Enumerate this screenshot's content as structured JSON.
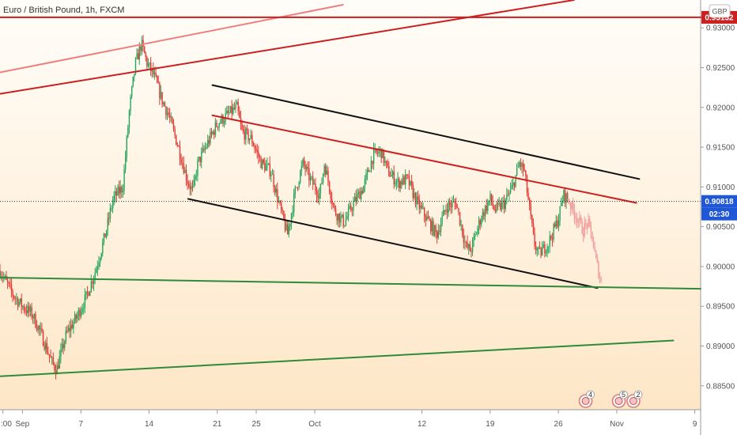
{
  "header": {
    "title": "Euro / British Pound, 1h, FXCM"
  },
  "axis": {
    "currency": "GBP"
  },
  "chart_data": {
    "type": "candlestick",
    "title": "Euro / British Pound, 1h, FXCM",
    "ylim": [
      0.882,
      0.9335
    ],
    "y_ticks": [
      "0.93000",
      "0.92500",
      "0.92000",
      "0.91500",
      "0.91000",
      "0.90500",
      "0.90000",
      "0.89500",
      "0.89000",
      "0.88500"
    ],
    "y_tick_values": [
      0.93,
      0.925,
      0.92,
      0.915,
      0.91,
      0.905,
      0.9,
      0.895,
      0.89,
      0.885
    ],
    "x_ticks": [
      ":00",
      "Sep",
      "7",
      "14",
      "21",
      "25",
      "Oct",
      "12",
      "19",
      "26",
      "Nov",
      "9"
    ],
    "x_tick_days": [
      -2,
      0,
      6,
      13,
      20,
      24,
      30,
      41,
      48,
      55,
      61,
      69
    ],
    "x_range_days": [
      -2.3,
      69.6
    ],
    "price_labels": {
      "resistance": {
        "text": "0.93132",
        "value": 0.93132,
        "color": "#cc1f1f"
      },
      "last": {
        "text": "0.90818",
        "value": 0.90818,
        "color": "#1f57d6"
      },
      "countdown": {
        "text": "02:30",
        "color": "#1f57d6"
      }
    },
    "colors": {
      "up": "#26a65b",
      "down": "#e53935",
      "recent": "#f29b9b",
      "black_channel": "#111111",
      "red_trend": "#cc1f1f",
      "pink_trend": "#ef7f7f",
      "green_support": "#2f8a3a"
    },
    "trend_lines": [
      {
        "name": "pink-upper-trendline",
        "color": "#ef7f7f",
        "width": 2,
        "p1": [
          -2.3,
          0.9244
        ],
        "p2": [
          32.9,
          0.9329
        ]
      },
      {
        "name": "red-upper-trendline",
        "color": "#cc1f1f",
        "width": 2,
        "p1": [
          -2.3,
          0.9217
        ],
        "p2": [
          56.6,
          0.9335
        ]
      },
      {
        "name": "horizontal-resistance-line",
        "color": "#cc1f1f",
        "width": 2,
        "p1": [
          -2.3,
          0.93132
        ],
        "p2": [
          69.6,
          0.93132
        ]
      },
      {
        "name": "channel-upper-line",
        "color": "#111111",
        "width": 2,
        "p1": [
          19.5,
          0.9228
        ],
        "p2": [
          63.3,
          0.911
        ]
      },
      {
        "name": "channel-lower-line",
        "color": "#111111",
        "width": 2,
        "p1": [
          17.0,
          0.9085
        ],
        "p2": [
          59.0,
          0.8973
        ]
      },
      {
        "name": "red-channel-midline",
        "color": "#cc1f1f",
        "width": 2,
        "p1": [
          19.5,
          0.919
        ],
        "p2": [
          63.0,
          0.908
        ]
      },
      {
        "name": "green-support-upper",
        "color": "#2f8a3a",
        "width": 2,
        "p1": [
          -2.3,
          0.8986
        ],
        "p2": [
          69.6,
          0.8972
        ]
      },
      {
        "name": "green-support-lower",
        "color": "#2f8a3a",
        "width": 2,
        "p1": [
          -2.3,
          0.8862
        ],
        "p2": [
          66.8,
          0.8907
        ]
      }
    ],
    "price_path": [
      [
        -2.3,
        0.8995
      ],
      [
        -1.0,
        0.8965
      ],
      [
        0.0,
        0.895
      ],
      [
        1.0,
        0.894
      ],
      [
        2.0,
        0.8912
      ],
      [
        3.0,
        0.888
      ],
      [
        3.5,
        0.887
      ],
      [
        4.5,
        0.8915
      ],
      [
        5.5,
        0.8935
      ],
      [
        6.5,
        0.896
      ],
      [
        7.5,
        0.8995
      ],
      [
        8.5,
        0.904
      ],
      [
        9.3,
        0.9085
      ],
      [
        10.3,
        0.91
      ],
      [
        11.0,
        0.92
      ],
      [
        11.6,
        0.9255
      ],
      [
        12.2,
        0.928
      ],
      [
        12.8,
        0.9255
      ],
      [
        13.5,
        0.924
      ],
      [
        14.3,
        0.921
      ],
      [
        15.0,
        0.919
      ],
      [
        16.0,
        0.915
      ],
      [
        17.0,
        0.9105
      ],
      [
        17.5,
        0.9095
      ],
      [
        18.0,
        0.913
      ],
      [
        19.0,
        0.9155
      ],
      [
        20.0,
        0.918
      ],
      [
        21.0,
        0.919
      ],
      [
        22.0,
        0.92
      ],
      [
        22.5,
        0.917
      ],
      [
        23.5,
        0.916
      ],
      [
        24.5,
        0.913
      ],
      [
        25.5,
        0.912
      ],
      [
        26.5,
        0.907
      ],
      [
        27.2,
        0.904
      ],
      [
        28.0,
        0.9095
      ],
      [
        28.8,
        0.913
      ],
      [
        29.5,
        0.911
      ],
      [
        30.5,
        0.909
      ],
      [
        31.0,
        0.913
      ],
      [
        32.0,
        0.907
      ],
      [
        33.0,
        0.9055
      ],
      [
        34.0,
        0.908
      ],
      [
        35.0,
        0.91
      ],
      [
        36.0,
        0.914
      ],
      [
        36.8,
        0.9145
      ],
      [
        37.5,
        0.912
      ],
      [
        38.5,
        0.9105
      ],
      [
        39.5,
        0.911
      ],
      [
        40.5,
        0.908
      ],
      [
        41.5,
        0.906
      ],
      [
        42.5,
        0.904
      ],
      [
        43.5,
        0.9075
      ],
      [
        44.5,
        0.908
      ],
      [
        45.5,
        0.9025
      ],
      [
        46.0,
        0.902
      ],
      [
        47.0,
        0.906
      ],
      [
        48.0,
        0.9085
      ],
      [
        48.5,
        0.907
      ],
      [
        49.5,
        0.908
      ],
      [
        50.3,
        0.91
      ],
      [
        51.0,
        0.913
      ],
      [
        51.5,
        0.912
      ],
      [
        52.0,
        0.9075
      ],
      [
        52.5,
        0.903
      ],
      [
        53.0,
        0.9015
      ],
      [
        54.0,
        0.903
      ],
      [
        55.0,
        0.906
      ],
      [
        55.5,
        0.909
      ],
      [
        56.0,
        0.9085
      ]
    ],
    "recent_path": [
      [
        56.0,
        0.9085
      ],
      [
        56.5,
        0.907
      ],
      [
        57.0,
        0.906
      ],
      [
        57.5,
        0.9045
      ],
      [
        58.0,
        0.9055
      ],
      [
        58.5,
        0.9035
      ],
      [
        58.8,
        0.901
      ],
      [
        59.2,
        0.899
      ],
      [
        59.5,
        0.8973
      ]
    ],
    "events": [
      {
        "label": "4",
        "day": 57.8
      },
      {
        "label": "5",
        "day": 61.2
      },
      {
        "label": "2",
        "day": 62.7
      }
    ]
  }
}
